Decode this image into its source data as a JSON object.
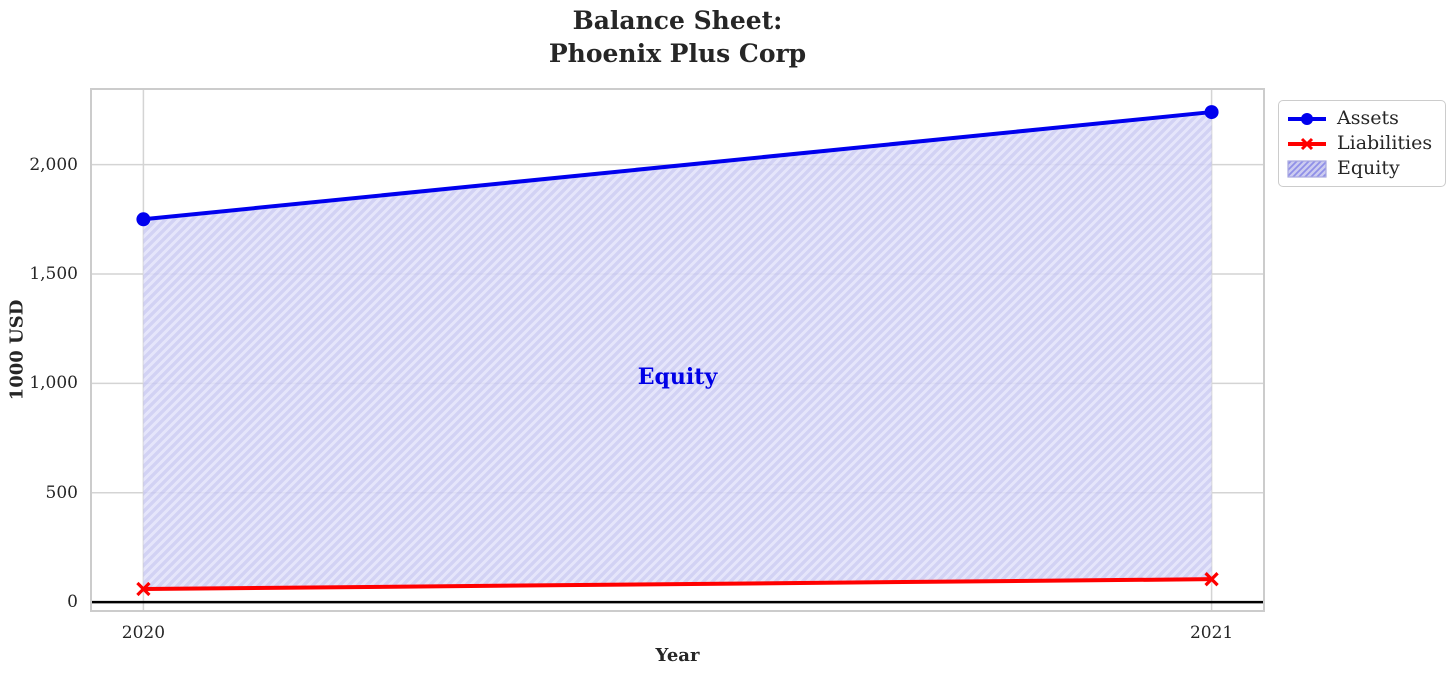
{
  "chart_data": {
    "type": "line",
    "title": "Balance Sheet:\nPhoenix Plus Corp",
    "title_lines": [
      "Balance Sheet:",
      "Phoenix Plus Corp"
    ],
    "xlabel": "Year",
    "ylabel": "1000 USD",
    "x": [
      2020,
      2021
    ],
    "series": [
      {
        "name": "Assets",
        "values": [
          1750,
          2240
        ],
        "color": "#0000ee",
        "marker": "circle"
      },
      {
        "name": "Liabilities",
        "values": [
          60,
          105
        ],
        "color": "#ff0000",
        "marker": "x"
      }
    ],
    "area_between": {
      "name": "Equity",
      "upper_series": "Assets",
      "lower_series": "Liabilities",
      "fill_color": "#e0e0fa",
      "hatch": "/",
      "hatch_color": "#cacaf2"
    },
    "annotation": {
      "text": "Equity",
      "x": 2020.5,
      "y": 1030,
      "color": "#0000e6"
    },
    "xlim": [
      2019.95,
      2021.05
    ],
    "ylim": [
      -45,
      2350
    ],
    "yticks": {
      "values": [
        0,
        500,
        1000,
        1500,
        2000
      ],
      "labels": [
        "0",
        "500",
        "1,000",
        "1,500",
        "2,000"
      ]
    },
    "xticks": {
      "values": [
        2020,
        2021
      ],
      "labels": [
        "2020",
        "2021"
      ]
    },
    "grid": true,
    "zero_line": true,
    "legend_position": "outside upper right"
  },
  "legend": {
    "items": [
      {
        "label": "Assets",
        "type": "line-circle",
        "color": "#0000ee"
      },
      {
        "label": "Liabilities",
        "type": "line-x",
        "color": "#ff0000"
      },
      {
        "label": "Equity",
        "type": "hatch-patch",
        "fill": "#ccccf0",
        "hatch": "#8f8fe8",
        "border": "#a8a8e0"
      }
    ]
  },
  "colors": {
    "assets_line": "#0000ee",
    "liabilities_line": "#ff0000",
    "grid": "#d4d4d4",
    "spine": "#cccccc",
    "zero_line": "#000000",
    "text": "#262626",
    "annotation_text": "#0000e6",
    "fill_background": "#e0e0fa",
    "fill_hatch": "#cacaf2"
  }
}
